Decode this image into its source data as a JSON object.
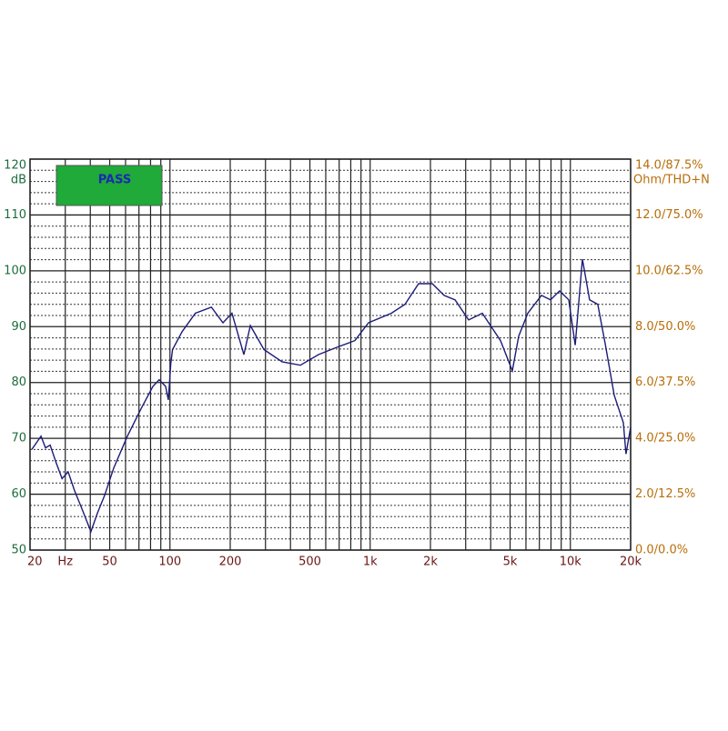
{
  "chart_data": {
    "type": "line",
    "log_x": true,
    "annotation": "PASS",
    "annotation_color": "#1faa3a",
    "ylabel": "dB",
    "y2label": "Ohm/THD+N",
    "xlim": [
      20,
      20000
    ],
    "ylim": [
      50,
      120
    ],
    "y2lim": [
      0,
      14
    ],
    "xticks": [
      20,
      {
        "value": 30,
        "label": "Hz"
      },
      50,
      100,
      200,
      500,
      {
        "value": 1000,
        "label": "1k"
      },
      {
        "value": 2000,
        "label": "2k"
      },
      {
        "value": 5000,
        "label": "5k"
      },
      {
        "value": 10000,
        "label": "10k"
      },
      {
        "value": 20000,
        "label": "20k"
      }
    ],
    "xgrid": [
      20,
      30,
      40,
      50,
      60,
      70,
      80,
      90,
      100,
      200,
      300,
      400,
      500,
      600,
      700,
      800,
      900,
      1000,
      2000,
      3000,
      4000,
      5000,
      6000,
      7000,
      8000,
      9000,
      10000,
      20000
    ],
    "yticks": [
      50,
      60,
      70,
      80,
      90,
      100,
      110,
      120
    ],
    "yminorticks": [
      52,
      54,
      56,
      58,
      62,
      64,
      66,
      68,
      72,
      74,
      76,
      78,
      82,
      84,
      86,
      88,
      92,
      94,
      96,
      98,
      102,
      104,
      106,
      108,
      112,
      114,
      116,
      118
    ],
    "y2ticks": [
      {
        "value": 0,
        "label": "0.0/0.0%"
      },
      {
        "value": 2,
        "label": "2.0/12.5%"
      },
      {
        "value": 4,
        "label": "4.0/25.0%"
      },
      {
        "value": 6,
        "label": "6.0/37.5%"
      },
      {
        "value": 8,
        "label": "8.0/50.0%"
      },
      {
        "value": 10,
        "label": "10.0/62.5%"
      },
      {
        "value": 12,
        "label": "12.0/75.0%"
      },
      {
        "value": 14,
        "label": "14.0/87.5%"
      }
    ],
    "series": [
      {
        "color": "#1c1c78",
        "x": [
          20.4,
          22.7,
          23.9,
          25.2,
          27.1,
          28.9,
          31,
          33.4,
          36.3,
          40.3,
          43.4,
          47.2,
          52.4,
          61.3,
          71.7,
          82.2,
          88.3,
          95.1,
          98.2,
          101,
          103,
          115,
          134,
          161,
          184,
          204,
          234,
          252,
          295,
          363,
          448,
          552,
          681,
          839,
          982,
          1276,
          1492,
          1746,
          2042,
          2339,
          2655,
          3105,
          3631,
          4477,
          5130,
          5521,
          6128,
          7172,
          7962,
          8831,
          9817,
          10568,
          11482,
          12476,
          13709,
          14927,
          16558,
          18394,
          18967,
          20000
        ],
        "values": [
          68,
          70.4,
          68.3,
          68.8,
          65.5,
          62.8,
          64,
          60.6,
          57.4,
          53.3,
          56.6,
          59.8,
          64.7,
          70.4,
          75.3,
          79.3,
          80.5,
          79.3,
          76.9,
          83.4,
          85.9,
          89.1,
          92.4,
          93.5,
          90.7,
          92.4,
          85,
          90.2,
          85.9,
          83.7,
          83.1,
          85,
          86.3,
          87.5,
          90.7,
          92.4,
          94,
          97.7,
          97.7,
          95.6,
          94.8,
          91.2,
          92.4,
          87.5,
          82.1,
          88.3,
          92.4,
          95.6,
          94.8,
          96.4,
          94.8,
          86.7,
          102.1,
          94.8,
          94,
          87,
          77.7,
          72.8,
          67.2,
          72
        ]
      }
    ]
  }
}
